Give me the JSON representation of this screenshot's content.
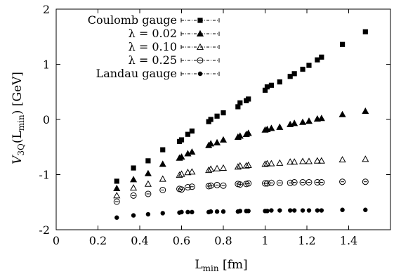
{
  "chart_data": {
    "type": "scatter",
    "xlabel": {
      "base": "L",
      "sub": "min",
      "unit": " [fm]"
    },
    "ylabel": {
      "prefix": "V",
      "sub1": "3Q",
      "mid": "(L",
      "sub2": "min",
      "suffix": ") [GeV]"
    },
    "xlim": [
      0,
      1.6
    ],
    "ylim": [
      -2,
      2
    ],
    "xticks": [
      0,
      0.2,
      0.4,
      0.6,
      0.8,
      1,
      1.2,
      1.4
    ],
    "xtick_labels": [
      "0",
      "0.2",
      "0.4",
      "0.6",
      "0.8",
      "1",
      "1.2",
      "1.4"
    ],
    "yticks": [
      -2,
      -1,
      0,
      1,
      2
    ],
    "ytick_labels": [
      "-2",
      "-1",
      "0",
      "1",
      "2"
    ],
    "legend_position": "top-left",
    "series": [
      {
        "name": "Coulomb gauge",
        "marker": "square-filled",
        "points": [
          [
            0.29,
            -1.12
          ],
          [
            0.37,
            -0.88
          ],
          [
            0.44,
            -0.75
          ],
          [
            0.51,
            -0.55
          ],
          [
            0.59,
            -0.4
          ],
          [
            0.6,
            -0.37
          ],
          [
            0.63,
            -0.27
          ],
          [
            0.65,
            -0.21
          ],
          [
            0.73,
            -0.04
          ],
          [
            0.74,
            0.0
          ],
          [
            0.77,
            0.06
          ],
          [
            0.8,
            0.12
          ],
          [
            0.87,
            0.23
          ],
          [
            0.88,
            0.3
          ],
          [
            0.91,
            0.34
          ],
          [
            0.92,
            0.37
          ],
          [
            1.0,
            0.53
          ],
          [
            1.01,
            0.59
          ],
          [
            1.03,
            0.62
          ],
          [
            1.07,
            0.68
          ],
          [
            1.12,
            0.78
          ],
          [
            1.14,
            0.83
          ],
          [
            1.18,
            0.91
          ],
          [
            1.21,
            0.98
          ],
          [
            1.25,
            1.08
          ],
          [
            1.27,
            1.13
          ],
          [
            1.37,
            1.36
          ],
          [
            1.48,
            1.59
          ]
        ]
      },
      {
        "name": "λ = 0.02",
        "marker": "triangle-filled",
        "points": [
          [
            0.29,
            -1.25
          ],
          [
            0.37,
            -1.09
          ],
          [
            0.44,
            -0.98
          ],
          [
            0.51,
            -0.81
          ],
          [
            0.59,
            -0.7
          ],
          [
            0.6,
            -0.68
          ],
          [
            0.63,
            -0.62
          ],
          [
            0.65,
            -0.59
          ],
          [
            0.73,
            -0.47
          ],
          [
            0.74,
            -0.44
          ],
          [
            0.77,
            -0.42
          ],
          [
            0.8,
            -0.37
          ],
          [
            0.87,
            -0.32
          ],
          [
            0.88,
            -0.3
          ],
          [
            0.91,
            -0.27
          ],
          [
            0.92,
            -0.25
          ],
          [
            1.0,
            -0.19
          ],
          [
            1.01,
            -0.18
          ],
          [
            1.03,
            -0.16
          ],
          [
            1.07,
            -0.14
          ],
          [
            1.12,
            -0.09
          ],
          [
            1.14,
            -0.07
          ],
          [
            1.18,
            -0.05
          ],
          [
            1.21,
            -0.03
          ],
          [
            1.25,
            0.01
          ],
          [
            1.27,
            0.02
          ],
          [
            1.37,
            0.09
          ],
          [
            1.48,
            0.15
          ]
        ]
      },
      {
        "name": "λ = 0.10",
        "marker": "triangle-open",
        "points": [
          [
            0.29,
            -1.38
          ],
          [
            0.37,
            -1.24
          ],
          [
            0.44,
            -1.17
          ],
          [
            0.51,
            -1.08
          ],
          [
            0.59,
            -1.01
          ],
          [
            0.6,
            -0.99
          ],
          [
            0.63,
            -0.96
          ],
          [
            0.65,
            -0.95
          ],
          [
            0.73,
            -0.92
          ],
          [
            0.74,
            -0.9
          ],
          [
            0.77,
            -0.89
          ],
          [
            0.8,
            -0.88
          ],
          [
            0.87,
            -0.86
          ],
          [
            0.88,
            -0.84
          ],
          [
            0.91,
            -0.84
          ],
          [
            0.92,
            -0.83
          ],
          [
            1.0,
            -0.81
          ],
          [
            1.01,
            -0.8
          ],
          [
            1.03,
            -0.8
          ],
          [
            1.07,
            -0.79
          ],
          [
            1.12,
            -0.77
          ],
          [
            1.14,
            -0.77
          ],
          [
            1.18,
            -0.76
          ],
          [
            1.21,
            -0.76
          ],
          [
            1.25,
            -0.75
          ],
          [
            1.27,
            -0.75
          ],
          [
            1.37,
            -0.73
          ],
          [
            1.48,
            -0.72
          ]
        ]
      },
      {
        "name": "λ = 0.25",
        "marker": "circle-open",
        "points": [
          [
            0.29,
            -1.49
          ],
          [
            0.37,
            -1.38
          ],
          [
            0.44,
            -1.35
          ],
          [
            0.51,
            -1.28
          ],
          [
            0.59,
            -1.26
          ],
          [
            0.6,
            -1.27
          ],
          [
            0.63,
            -1.23
          ],
          [
            0.65,
            -1.22
          ],
          [
            0.73,
            -1.21
          ],
          [
            0.74,
            -1.2
          ],
          [
            0.77,
            -1.19
          ],
          [
            0.8,
            -1.2
          ],
          [
            0.87,
            -1.17
          ],
          [
            0.88,
            -1.18
          ],
          [
            0.91,
            -1.17
          ],
          [
            0.92,
            -1.16
          ],
          [
            1.0,
            -1.16
          ],
          [
            1.01,
            -1.16
          ],
          [
            1.03,
            -1.15
          ],
          [
            1.07,
            -1.15
          ],
          [
            1.12,
            -1.15
          ],
          [
            1.14,
            -1.14
          ],
          [
            1.18,
            -1.14
          ],
          [
            1.21,
            -1.14
          ],
          [
            1.25,
            -1.14
          ],
          [
            1.27,
            -1.14
          ],
          [
            1.37,
            -1.13
          ],
          [
            1.48,
            -1.13
          ]
        ]
      },
      {
        "name": "Landau gauge",
        "marker": "circle-filled",
        "points": [
          [
            0.29,
            -1.78
          ],
          [
            0.37,
            -1.74
          ],
          [
            0.44,
            -1.72
          ],
          [
            0.51,
            -1.7
          ],
          [
            0.59,
            -1.69
          ],
          [
            0.6,
            -1.68
          ],
          [
            0.63,
            -1.68
          ],
          [
            0.65,
            -1.68
          ],
          [
            0.73,
            -1.68
          ],
          [
            0.74,
            -1.67
          ],
          [
            0.77,
            -1.67
          ],
          [
            0.8,
            -1.67
          ],
          [
            0.87,
            -1.67
          ],
          [
            0.88,
            -1.66
          ],
          [
            0.91,
            -1.66
          ],
          [
            0.92,
            -1.66
          ],
          [
            1.0,
            -1.66
          ],
          [
            1.01,
            -1.66
          ],
          [
            1.03,
            -1.65
          ],
          [
            1.07,
            -1.65
          ],
          [
            1.12,
            -1.65
          ],
          [
            1.14,
            -1.65
          ],
          [
            1.18,
            -1.65
          ],
          [
            1.21,
            -1.65
          ],
          [
            1.25,
            -1.65
          ],
          [
            1.27,
            -1.65
          ],
          [
            1.37,
            -1.64
          ],
          [
            1.48,
            -1.64
          ]
        ]
      }
    ]
  }
}
